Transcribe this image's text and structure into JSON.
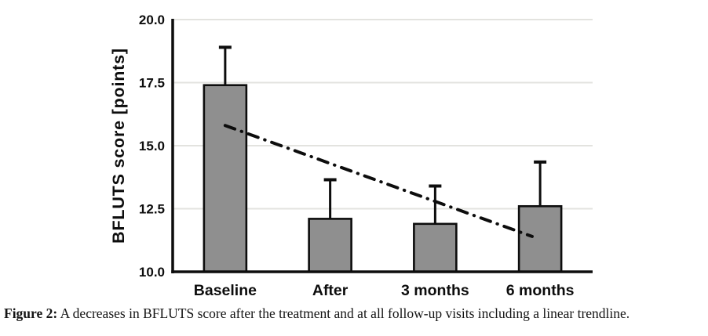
{
  "figure": {
    "caption_label": "Figure 2:",
    "caption_text": " A decreases in BFLUTS score after the treatment and at all follow-up visits including a linear trendline."
  },
  "chart_data": {
    "type": "bar",
    "title": "",
    "xlabel": "",
    "ylabel": "BFLUTS score [points]",
    "categories": [
      "Baseline",
      "After",
      "3 months",
      "6 months"
    ],
    "values": [
      17.4,
      12.1,
      11.9,
      12.6
    ],
    "error_plus": [
      1.5,
      1.55,
      1.5,
      1.75
    ],
    "ylim": [
      10,
      20
    ],
    "yticks": [
      10.0,
      12.5,
      15.0,
      17.5,
      20.0
    ],
    "ytick_labels": [
      "10.0",
      "12.5",
      "15.0",
      "17.5",
      "20.0"
    ],
    "grid": "horizontal-light-gray",
    "legend": "none",
    "colors": {
      "bar_fill": "#8f8f8f",
      "bar_border": "#0d0d0d",
      "axis": "#0d0d0d",
      "gridline": "#e3e3df",
      "text": "#0d0d0d",
      "trendline": "#0d0d0d"
    },
    "trendline": {
      "style": "dash-dot",
      "start": {
        "x_frac": 0.125,
        "value": 15.8
      },
      "end": {
        "x_frac": 0.856,
        "value": 11.4
      }
    }
  }
}
